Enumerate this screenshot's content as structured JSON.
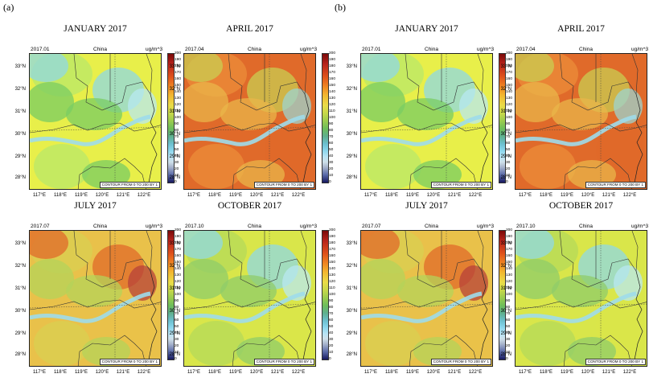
{
  "figure_labels": [
    "(a)",
    "(b)"
  ],
  "common": {
    "region": "China",
    "unit": "ug/m^3",
    "contour_note": "CONTOUR FROM 0 TO 200 BY 1",
    "lat_labels": [
      "33°N",
      "32°N",
      "31°N",
      "30°N",
      "29°N",
      "28°N"
    ],
    "lon_labels": [
      "117°E",
      "118°E",
      "119°E",
      "120°E",
      "121°E",
      "122°E"
    ],
    "colorbar_ticks": [
      "200",
      "190",
      "180",
      "170",
      "160",
      "150",
      "140",
      "130",
      "120",
      "110",
      "100",
      "90",
      "80",
      "70",
      "60",
      "50",
      "40",
      "30",
      "20",
      "10",
      "0"
    ]
  },
  "maps": [
    {
      "group": "a",
      "title": "JANUARY 2017",
      "date": "2017.01"
    },
    {
      "group": "a",
      "title": "APRIL 2017",
      "date": "2017.04"
    },
    {
      "group": "a",
      "title": "JULY 2017",
      "date": "2017.07"
    },
    {
      "group": "a",
      "title": "OCTOBER 2017",
      "date": "2017.10"
    },
    {
      "group": "b",
      "title": "JANUARY 2017",
      "date": "2017.01"
    },
    {
      "group": "b",
      "title": "APRIL 2017",
      "date": "2017.04"
    },
    {
      "group": "b",
      "title": "JULY 2017",
      "date": "2017.07"
    },
    {
      "group": "b",
      "title": "OCTOBER 2017",
      "date": "2017.10"
    }
  ],
  "palette": {
    "jan": [
      "#e8ef4a",
      "#b9e86a",
      "#79cc63",
      "#8fd8e4",
      "#b8e8f2"
    ],
    "apr": [
      "#e06a2a",
      "#ec8e3a",
      "#e9b54a",
      "#c9ce52",
      "#9ed4cf"
    ],
    "jul": [
      "#e9c14a",
      "#d8cf52",
      "#b4d35a",
      "#e06a2a",
      "#b7413a"
    ],
    "oct": [
      "#d9e64a",
      "#b4da5a",
      "#8fcc6a",
      "#8fd8e4",
      "#b8e8f2"
    ]
  }
}
